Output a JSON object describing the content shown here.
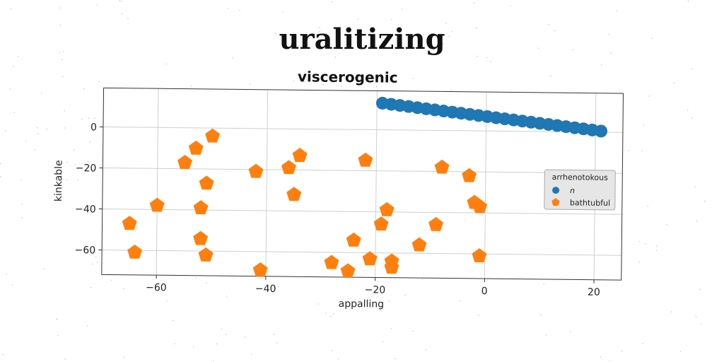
{
  "suptitle": "uralitizing",
  "chart_data": {
    "type": "scatter",
    "title": "viscerogenic",
    "xlabel": "appalling",
    "ylabel": "kinkable",
    "xlim": [
      -70,
      25
    ],
    "ylim": [
      -72,
      19
    ],
    "xticks": [
      -60,
      -40,
      -20,
      0,
      20
    ],
    "yticks": [
      0,
      -20,
      -40,
      -60
    ],
    "grid": true,
    "legend": {
      "title": "arrhenotokous",
      "placement": "right"
    },
    "series": [
      {
        "name": "n",
        "marker": "circle",
        "color": "#1f77b4",
        "x": [
          -19.0,
          -17.4,
          -15.8,
          -14.2,
          -12.6,
          -11.0,
          -9.4,
          -7.8,
          -6.2,
          -4.6,
          -3.0,
          -1.4,
          0.2,
          1.8,
          3.4,
          5.0,
          6.6,
          8.2,
          9.8,
          11.4,
          13.0,
          14.6,
          16.2,
          17.8,
          19.4,
          21.0
        ],
        "y": [
          13.0,
          12.5,
          12.0,
          11.5,
          11.0,
          10.5,
          10.0,
          9.5,
          9.0,
          8.5,
          8.0,
          7.5,
          7.0,
          6.5,
          6.0,
          5.5,
          5.0,
          4.5,
          4.0,
          3.5,
          3.0,
          2.5,
          2.0,
          1.5,
          1.0,
          0.5
        ]
      },
      {
        "name": "bathtubful",
        "marker": "pentagon",
        "color": "#ff7f0e",
        "x": [
          -50,
          -53,
          -55,
          -51,
          -60,
          -52,
          -65,
          -64,
          -52,
          -51,
          -42,
          -36,
          -34,
          -35,
          -41,
          -22,
          -18,
          -19,
          -24,
          -28,
          -25,
          -21,
          -17,
          -17,
          -12,
          -9,
          -8,
          -3,
          -2,
          -1,
          -1
        ],
        "y": [
          -4,
          -10,
          -17,
          -27,
          -38,
          -39,
          -47,
          -61,
          -54,
          -62,
          -21,
          -19,
          -13,
          -32,
          -69,
          -15,
          -39,
          -46,
          -54,
          -65,
          -69,
          -63,
          -64,
          -67,
          -56,
          -46,
          -18,
          -22,
          -35,
          -37,
          -61
        ]
      }
    ]
  }
}
